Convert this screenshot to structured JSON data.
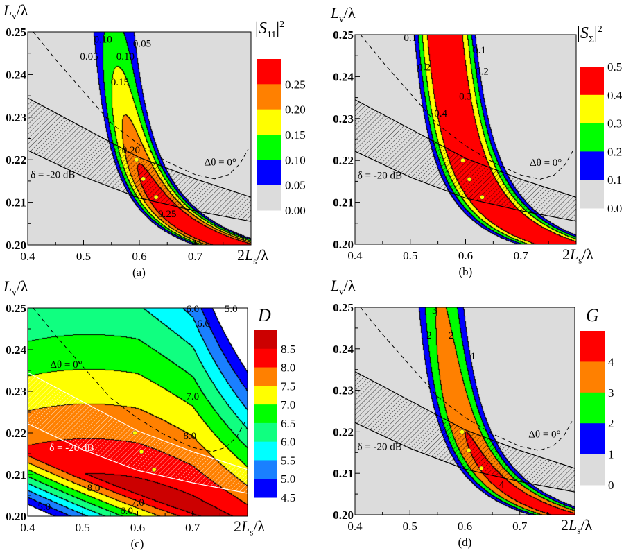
{
  "common": {
    "x_label": {
      "pre": "2",
      "var": "L",
      "sub": "s",
      "post": "/λ"
    },
    "y_label": {
      "var": "L",
      "sub": "v",
      "post": "/λ"
    },
    "x_ticks": [
      "0.4",
      "0.5",
      "0.6",
      "0.7"
    ],
    "y_ticks": [
      "0.25",
      "0.24",
      "0.23",
      "0.22",
      "0.21",
      "0.20"
    ],
    "xlim": [
      0.4,
      0.8
    ],
    "ylim": [
      0.2,
      0.25
    ],
    "marked_points": [
      [
        0.595,
        0.22
      ],
      [
        0.607,
        0.2155
      ],
      [
        0.63,
        0.2112
      ]
    ],
    "point_color": "#ffff00",
    "band_label": "δ = -20 dB",
    "curve_label": "Δθ = 0°"
  },
  "chart_data": [
    {
      "type": "heatmap",
      "caption": "(a)",
      "colorbar_title": {
        "base": "|S",
        "sub": "11",
        "end": "|",
        "sup": "2"
      },
      "levels": [
        "0.25",
        "0.20",
        "0.15",
        "0.10",
        "0.05",
        "0.00"
      ],
      "colors": [
        "#ff0000",
        "#ff8000",
        "#ffff00",
        "#00ff00",
        "#0000ff",
        "#dcdcdc"
      ],
      "contour_labels": [
        "0.10",
        "0.05",
        "0.05",
        "0.10",
        "0.15",
        "0.20",
        "0.25"
      ]
    },
    {
      "type": "heatmap",
      "caption": "(b)",
      "colorbar_title": {
        "base": "|S",
        "sub": "Σ",
        "end": "|",
        "sup": "2"
      },
      "levels": [
        "0.5",
        "0.4",
        "0.3",
        "0.2",
        "0.1",
        "0.0"
      ],
      "colors": [
        "#ff0000",
        "#ffff00",
        "#00ff00",
        "#0000ff",
        "#dcdcdc"
      ],
      "contour_labels": [
        "0.1",
        "0.1",
        "0.2",
        "0.2",
        "0.3",
        "0.4"
      ]
    },
    {
      "type": "heatmap",
      "caption": "(c)",
      "colorbar_title": {
        "base": "D",
        "sub": "",
        "end": "",
        "sup": ""
      },
      "levels": [
        "8.5",
        "8.0",
        "7.5",
        "7.0",
        "6.5",
        "6.0",
        "5.5",
        "5.0",
        "4.5"
      ],
      "colors": [
        "#cc0000",
        "#ff0000",
        "#ff8000",
        "#ffff00",
        "#00ff00",
        "#10ff80",
        "#00ffff",
        "#1a80ff",
        "#0000ff"
      ],
      "contour_labels": [
        "6.0",
        "5.0",
        "6.0",
        "7.0",
        "8.0",
        "8.0",
        "5.0",
        "6.0",
        "7.0"
      ]
    },
    {
      "type": "heatmap",
      "caption": "(d)",
      "colorbar_title": {
        "base": "G",
        "sub": "",
        "end": "",
        "sup": ""
      },
      "levels": [
        "4",
        "3",
        "2",
        "1",
        "0"
      ],
      "colors": [
        "#ff0000",
        "#ff8000",
        "#00ff00",
        "#0000ff",
        "#dcdcdc"
      ],
      "contour_labels": [
        "3",
        "2",
        "2",
        "1",
        "4"
      ]
    }
  ]
}
